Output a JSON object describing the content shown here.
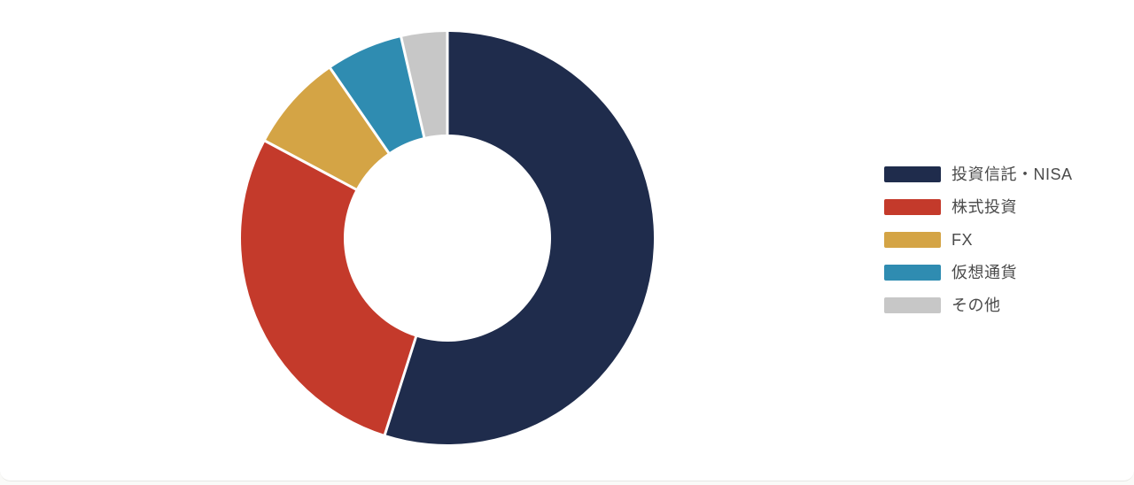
{
  "chart_data": {
    "type": "pie",
    "subtype": "donut",
    "categories": [
      "投資信託・NISA",
      "株式投資",
      "FX",
      "仮想通貨",
      "その他"
    ],
    "values": [
      54.9,
      27.9,
      7.6,
      6.0,
      3.6
    ],
    "colors": [
      "#1f2c4c",
      "#c43a2b",
      "#d4a445",
      "#2f8cb1",
      "#c7c7c7"
    ],
    "start_angle_deg": 0,
    "direction": "clockwise",
    "inner_radius_ratio": 0.5,
    "separator_color": "#ffffff",
    "legend_position": "right",
    "legend_label_color": "#4a4a4a"
  },
  "legend": {
    "items": [
      {
        "label": "投資信託・NISA"
      },
      {
        "label": "株式投資"
      },
      {
        "label": "FX"
      },
      {
        "label": "仮想通貨"
      },
      {
        "label": "その他"
      }
    ]
  }
}
